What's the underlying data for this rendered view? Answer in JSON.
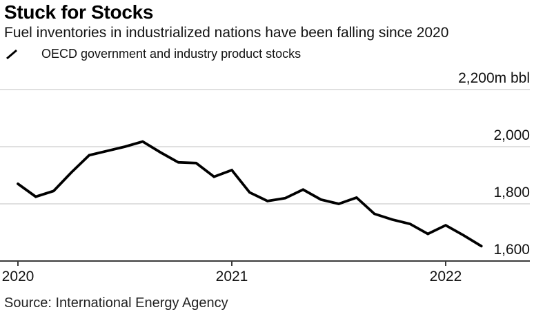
{
  "header": {
    "title": "Stuck for Stocks",
    "subtitle": "Fuel inventories in industrialized nations have been falling since 2020"
  },
  "legend": {
    "label": "OECD government and industry product stocks",
    "marker_icon": "diagonal-line"
  },
  "footer": {
    "source": "Source: International Energy Agency"
  },
  "colors": {
    "line": "#000000",
    "gridline": "#e0e0e0",
    "axis": "#3a3a3a",
    "tick_text": "#111111"
  },
  "chart_data": {
    "type": "line",
    "title": "Stuck for Stocks",
    "subtitle": "Fuel inventories in industrialized nations have been falling since 2020",
    "unit": "m bbl",
    "grid": "horizontal",
    "legend_position": "top-left",
    "ylim": [
      1600,
      2200
    ],
    "x": [
      "2020-01",
      "2020-02",
      "2020-03",
      "2020-04",
      "2020-05",
      "2020-06",
      "2020-07",
      "2020-08",
      "2020-09",
      "2020-10",
      "2020-11",
      "2020-12",
      "2021-01",
      "2021-02",
      "2021-03",
      "2021-04",
      "2021-05",
      "2021-06",
      "2021-07",
      "2021-08",
      "2021-09",
      "2021-10",
      "2021-11",
      "2021-12",
      "2022-01",
      "2022-02",
      "2022-03"
    ],
    "series": [
      {
        "name": "OECD government and industry product stocks",
        "values": [
          1870,
          1825,
          1845,
          1910,
          1970,
          1985,
          2000,
          2018,
          1980,
          1945,
          1943,
          1895,
          1918,
          1840,
          1810,
          1820,
          1850,
          1815,
          1800,
          1822,
          1765,
          1745,
          1730,
          1695,
          1725,
          1690,
          1652
        ]
      }
    ],
    "y_ticks": [
      {
        "value": 2200,
        "label": "2,200m bbl"
      },
      {
        "value": 2000,
        "label": "2,000"
      },
      {
        "value": 1800,
        "label": "1,800"
      },
      {
        "value": 1600,
        "label": "1,600"
      }
    ],
    "x_ticks": [
      {
        "month_index": 0,
        "label": "2020"
      },
      {
        "month_index": 12,
        "label": "2021"
      },
      {
        "month_index": 24,
        "label": "2022"
      }
    ]
  }
}
